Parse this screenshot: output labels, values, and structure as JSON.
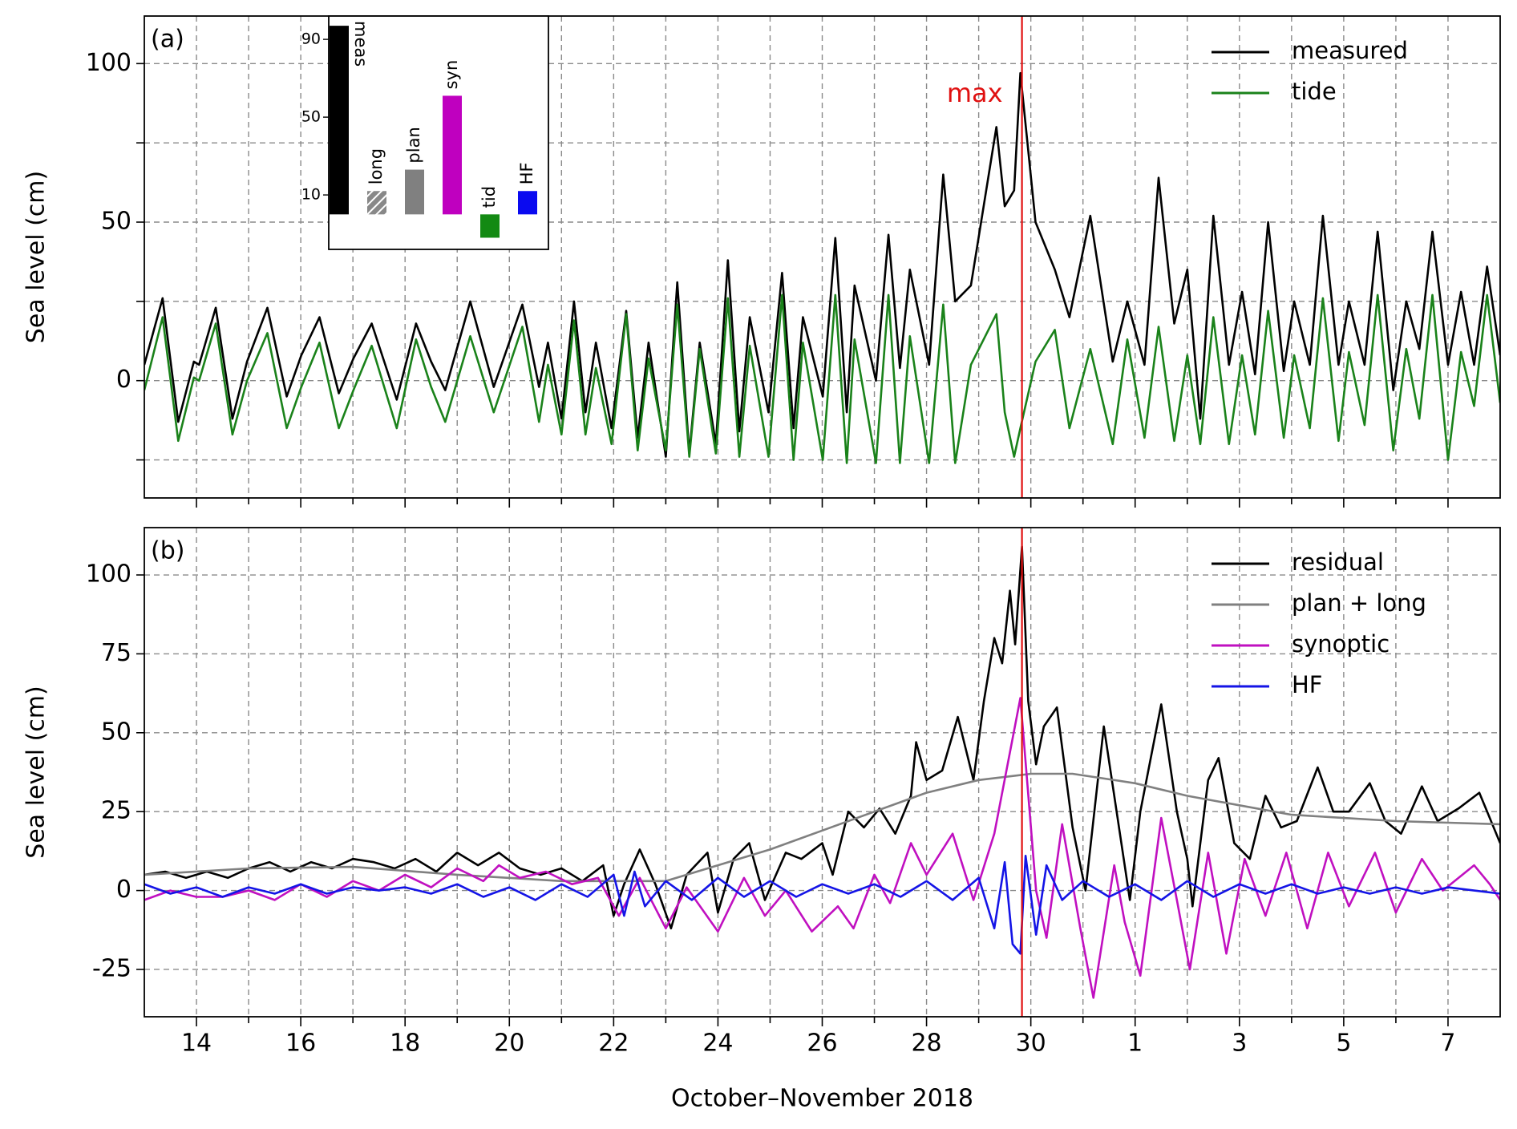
{
  "chart_data": [
    {
      "type": "line",
      "label": "(a)",
      "ylabel": "Sea level (cm)",
      "xlim": [
        13,
        39
      ],
      "ylim": [
        -37,
        115
      ],
      "yticks": [
        0,
        50,
        100
      ],
      "yminor": [
        -25,
        25,
        75
      ],
      "grid": true,
      "legend": "upper right",
      "vline": {
        "x": 29.83,
        "color": "#e01010"
      },
      "annotation": "max",
      "series": [
        {
          "name": "measured",
          "color": "#000000",
          "x": [
            13.0,
            13.35,
            13.65,
            13.95,
            14.05,
            14.37,
            14.69,
            14.97,
            15.36,
            15.73,
            16.01,
            16.36,
            16.73,
            17.01,
            17.36,
            17.84,
            18.21,
            18.5,
            18.77,
            19.25,
            19.7,
            20.25,
            20.57,
            20.74,
            21.0,
            21.24,
            21.46,
            21.66,
            21.96,
            22.24,
            22.46,
            22.67,
            23.0,
            23.22,
            23.45,
            23.65,
            23.96,
            24.19,
            24.41,
            24.61,
            24.97,
            25.23,
            25.45,
            25.63,
            26.01,
            26.25,
            26.47,
            26.62,
            27.03,
            27.27,
            27.49,
            27.68,
            28.05,
            28.32,
            28.55,
            28.85,
            29.34,
            29.5,
            29.68,
            29.8,
            30.09,
            30.46,
            30.74,
            31.14,
            31.57,
            31.85,
            32.18,
            32.45,
            32.75,
            33.0,
            33.25,
            33.5,
            33.8,
            34.05,
            34.3,
            34.55,
            34.85,
            35.05,
            35.35,
            35.6,
            35.9,
            36.1,
            36.4,
            36.65,
            36.95,
            37.2,
            37.45,
            37.7,
            38.0,
            38.25,
            38.5,
            38.75,
            39.0
          ],
          "values": [
            5,
            26,
            -13,
            6,
            5,
            23,
            -12,
            6,
            23,
            -5,
            8,
            20,
            -4,
            7,
            18,
            -6,
            18,
            6,
            -3,
            25,
            -2,
            24,
            -2,
            12,
            -12,
            25,
            -10,
            12,
            -15,
            22,
            -18,
            12,
            -24,
            31,
            -23,
            12,
            -20,
            38,
            -16,
            20,
            -10,
            34,
            -15,
            20,
            -5,
            45,
            -10,
            30,
            0,
            46,
            4,
            35,
            5,
            65,
            25,
            30,
            80,
            55,
            60,
            97,
            50,
            35,
            20,
            52,
            6,
            25,
            5,
            64,
            18,
            35,
            -12,
            52,
            5,
            28,
            2,
            50,
            3,
            25,
            5,
            52,
            5,
            25,
            5,
            47,
            -3,
            25,
            10,
            47,
            5,
            28,
            5,
            36,
            8
          ]
        },
        {
          "name": "tide",
          "color": "#1a821a",
          "x": [
            13.0,
            13.35,
            13.65,
            13.95,
            14.05,
            14.37,
            14.69,
            14.97,
            15.36,
            15.73,
            16.01,
            16.36,
            16.73,
            17.01,
            17.36,
            17.84,
            18.21,
            18.5,
            18.77,
            19.25,
            19.7,
            20.25,
            20.57,
            20.74,
            21.0,
            21.24,
            21.46,
            21.66,
            21.96,
            22.24,
            22.46,
            22.67,
            23.0,
            23.22,
            23.45,
            23.65,
            23.96,
            24.19,
            24.41,
            24.61,
            24.97,
            25.23,
            25.45,
            25.63,
            26.01,
            26.25,
            26.47,
            26.62,
            27.03,
            27.27,
            27.49,
            27.68,
            28.05,
            28.32,
            28.55,
            28.85,
            29.34,
            29.5,
            29.68,
            29.8,
            30.09,
            30.46,
            30.74,
            31.14,
            31.57,
            31.85,
            32.18,
            32.45,
            32.75,
            33.0,
            33.25,
            33.5,
            33.8,
            34.05,
            34.3,
            34.55,
            34.85,
            35.05,
            35.35,
            35.6,
            35.9,
            36.1,
            36.4,
            36.65,
            36.95,
            37.2,
            37.45,
            37.7,
            38.0,
            38.25,
            38.5,
            38.75,
            39.0
          ],
          "values": [
            -3,
            20,
            -19,
            1,
            0,
            18,
            -17,
            0,
            15,
            -15,
            -2,
            12,
            -15,
            -3,
            11,
            -15,
            13,
            -2,
            -13,
            14,
            -10,
            17,
            -13,
            5,
            -17,
            19,
            -17,
            4,
            -20,
            21,
            -22,
            7,
            -22,
            24,
            -24,
            10,
            -23,
            26,
            -24,
            11,
            -24,
            27,
            -25,
            12,
            -25,
            27,
            -26,
            13,
            -26,
            27,
            -26,
            14,
            -26,
            24,
            -26,
            5,
            21,
            -10,
            -24,
            -15,
            6,
            16,
            -15,
            10,
            -20,
            13,
            -18,
            17,
            -19,
            8,
            -20,
            20,
            -20,
            8,
            -17,
            22,
            -18,
            8,
            -15,
            26,
            -19,
            9,
            -14,
            27,
            -22,
            10,
            -12,
            27,
            -25,
            9,
            -8,
            27,
            -7
          ]
        }
      ],
      "inset": {
        "type": "bar",
        "categories": [
          "meas",
          "long",
          "plan",
          "syn",
          "tid",
          "HF"
        ],
        "values": [
          97,
          12,
          23,
          61,
          -12,
          12
        ],
        "colors": [
          "#000000",
          "#888888",
          "#808080",
          "#bf00bf",
          "#138a13",
          "#0a0af0"
        ],
        "hatch": [
          false,
          true,
          false,
          false,
          false,
          false
        ],
        "ylim": [
          -18,
          102
        ],
        "yticks": [
          10,
          50,
          90
        ]
      }
    },
    {
      "type": "line",
      "label": "(b)",
      "ylabel": "Sea level (cm)",
      "xlabel": "October–November 2018",
      "xlim": [
        13,
        39
      ],
      "ylim": [
        -40,
        115
      ],
      "yticks": [
        -25,
        0,
        25,
        50,
        75,
        100
      ],
      "grid": true,
      "xticks": [
        14,
        16,
        18,
        20,
        22,
        24,
        26,
        28,
        30,
        {
          "value": 32,
          "label": "1"
        },
        {
          "value": 34,
          "label": "3"
        },
        {
          "value": 36,
          "label": "5"
        },
        {
          "value": 38,
          "label": "7"
        }
      ],
      "xminor": [
        15,
        17,
        19,
        21,
        23,
        25,
        27,
        29,
        31,
        33,
        35,
        37
      ],
      "legend": "upper right",
      "vline": {
        "x": 29.83,
        "color": "#e01010"
      },
      "series": [
        {
          "name": "residual",
          "color": "#000000",
          "x": [
            13,
            13.4,
            13.8,
            14.2,
            14.6,
            15,
            15.4,
            15.8,
            16.2,
            16.6,
            17,
            17.4,
            17.8,
            18.2,
            18.6,
            19,
            19.4,
            19.8,
            20.2,
            20.6,
            21,
            21.4,
            21.8,
            22.0,
            22.2,
            22.5,
            22.8,
            23.1,
            23.4,
            23.8,
            24.0,
            24.3,
            24.6,
            24.9,
            25.3,
            25.6,
            26.0,
            26.2,
            26.5,
            26.8,
            27.1,
            27.4,
            27.7,
            27.8,
            28.0,
            28.3,
            28.6,
            28.9,
            29.1,
            29.3,
            29.45,
            29.6,
            29.7,
            29.83,
            29.95,
            30.1,
            30.25,
            30.5,
            30.8,
            31.05,
            31.4,
            31.6,
            31.9,
            32.1,
            32.5,
            32.8,
            33.0,
            33.1,
            33.4,
            33.6,
            33.9,
            34.2,
            34.5,
            34.8,
            35.1,
            35.5,
            35.8,
            36.1,
            36.5,
            36.8,
            37.1,
            37.5,
            37.8,
            38.2,
            38.6,
            39.0
          ],
          "values": [
            5,
            6,
            4,
            6,
            4,
            7,
            9,
            6,
            9,
            7,
            10,
            9,
            7,
            10,
            6,
            12,
            8,
            12,
            7,
            5,
            7,
            3,
            8,
            -8,
            2,
            13,
            2,
            -12,
            5,
            12,
            -7,
            10,
            15,
            -3,
            12,
            10,
            15,
            5,
            25,
            20,
            26,
            18,
            30,
            47,
            35,
            38,
            55,
            35,
            60,
            80,
            72,
            95,
            78,
            109,
            60,
            40,
            52,
            58,
            20,
            0,
            52,
            30,
            -3,
            25,
            59,
            25,
            10,
            -5,
            35,
            42,
            15,
            10,
            30,
            20,
            22,
            39,
            25,
            25,
            34,
            22,
            18,
            33,
            22,
            26,
            31,
            15
          ]
        },
        {
          "name": "plan + long",
          "color": "#808080",
          "x": [
            13,
            15,
            17,
            19,
            21,
            23,
            24,
            25,
            26,
            27,
            28,
            29,
            30,
            30.8,
            32,
            33,
            34,
            35,
            36,
            37,
            38,
            39
          ],
          "values": [
            5,
            7,
            7.5,
            5,
            3,
            3,
            8,
            13,
            19,
            25,
            31,
            35,
            37,
            37,
            34,
            30,
            27,
            24,
            23,
            22,
            21.5,
            21
          ]
        },
        {
          "name": "synoptic",
          "color": "#c010c0",
          "x": [
            13,
            13.5,
            14,
            14.5,
            15,
            15.5,
            16,
            16.5,
            17,
            17.5,
            18,
            18.5,
            19,
            19.5,
            19.8,
            20.2,
            20.7,
            21.2,
            21.7,
            22.1,
            22.5,
            23.0,
            23.4,
            24.0,
            24.5,
            24.9,
            25.3,
            25.8,
            26.3,
            26.6,
            27.0,
            27.3,
            27.7,
            28.0,
            28.5,
            28.9,
            29.3,
            29.8,
            30.1,
            30.3,
            30.6,
            30.95,
            31.2,
            31.6,
            31.8,
            32.1,
            32.5,
            32.8,
            33.05,
            33.4,
            33.75,
            34.1,
            34.5,
            34.9,
            35.3,
            35.7,
            36.1,
            36.6,
            37.0,
            37.5,
            37.9,
            38.5,
            38.8,
            39.0
          ],
          "values": [
            -3,
            0,
            -2,
            -2,
            0,
            -3,
            2,
            -2,
            3,
            0,
            5,
            1,
            7,
            3,
            8,
            4,
            6,
            2,
            4,
            -8,
            4,
            -12,
            1,
            -13,
            4,
            -8,
            0,
            -13,
            -5,
            -12,
            5,
            -4,
            15,
            5,
            18,
            -3,
            18,
            61,
            0,
            -15,
            21,
            -12,
            -34,
            8,
            -10,
            -27,
            23,
            -3,
            -25,
            12,
            -20,
            10,
            -8,
            12,
            -12,
            12,
            -5,
            12,
            -7,
            10,
            0,
            8,
            2,
            -3
          ]
        },
        {
          "name": "HF",
          "color": "#1414e6",
          "x": [
            13,
            13.5,
            14,
            14.5,
            15,
            15.5,
            16,
            16.5,
            17,
            17.5,
            18,
            18.5,
            19,
            19.5,
            20,
            20.5,
            21,
            21.5,
            22,
            22.2,
            22.4,
            22.6,
            23,
            23.5,
            24,
            24.5,
            25,
            25.5,
            26,
            26.5,
            27,
            27.5,
            28,
            28.5,
            29.0,
            29.3,
            29.5,
            29.65,
            29.8,
            29.9,
            30.1,
            30.3,
            30.6,
            31,
            31.5,
            32,
            32.5,
            33,
            33.5,
            34,
            34.5,
            35,
            35.5,
            36,
            36.5,
            37,
            37.5,
            38,
            38.5,
            39
          ],
          "values": [
            2,
            -1,
            1,
            -2,
            1,
            -1,
            2,
            -1,
            1,
            0,
            1,
            -1,
            2,
            -2,
            1,
            -3,
            2,
            -2,
            5,
            -8,
            6,
            -5,
            3,
            -3,
            4,
            -2,
            3,
            -2,
            2,
            -1,
            2,
            -2,
            3,
            -3,
            4,
            -12,
            9,
            -17,
            -20,
            11,
            -14,
            8,
            -3,
            3,
            -2,
            2,
            -3,
            3,
            -2,
            2,
            -1,
            2,
            -1,
            1,
            -1,
            1,
            -1,
            1,
            0,
            -1
          ]
        }
      ]
    }
  ]
}
